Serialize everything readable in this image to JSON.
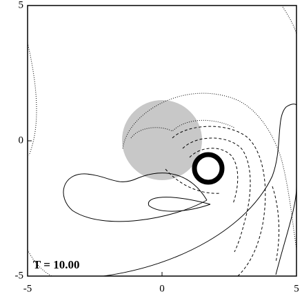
{
  "chart_data": {
    "type": "contour",
    "annotation": "T = 10.00",
    "xlim": [
      -5,
      5
    ],
    "ylim": [
      -5,
      5
    ],
    "xticks": [
      -5,
      0,
      5
    ],
    "yticks": [
      -5,
      0,
      5
    ]
  }
}
